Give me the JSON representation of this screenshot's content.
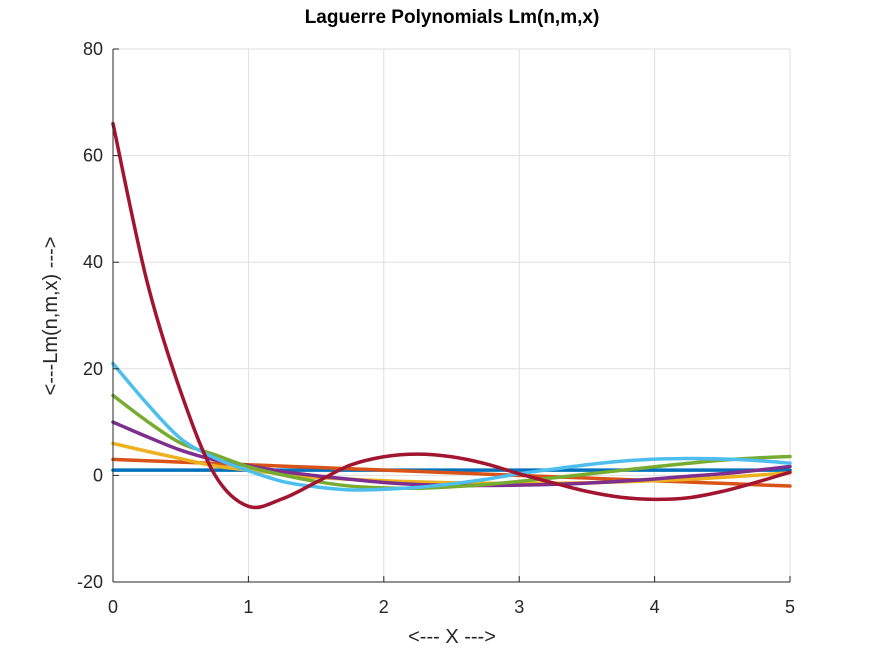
{
  "chart_data": {
    "type": "line",
    "title": "Laguerre Polynomials Lm(n,m,x)",
    "xlabel": "<--- X --->",
    "ylabel": "<---Lm(n,m,x) --->",
    "xlim": [
      0,
      5
    ],
    "ylim": [
      -20,
      80
    ],
    "xticks": [
      0,
      1,
      2,
      3,
      4,
      5
    ],
    "yticks": [
      -20,
      0,
      20,
      40,
      60,
      80
    ],
    "xtick_labels": [
      "0",
      "1",
      "2",
      "3",
      "4",
      "5"
    ],
    "ytick_labels": [
      "-20",
      "0",
      "20",
      "40",
      "60",
      "80"
    ],
    "grid": true,
    "colors": [
      "#0072BD",
      "#D95319",
      "#EDB120",
      "#7E2F8E",
      "#77AC30",
      "#4DBEEE",
      "#A2142F"
    ],
    "x": [
      0,
      0.25,
      0.5,
      0.75,
      1,
      1.25,
      1.5,
      1.75,
      2,
      2.25,
      2.5,
      2.75,
      3,
      3.25,
      3.5,
      3.75,
      4,
      4.25,
      4.5,
      4.75,
      5
    ],
    "series": [
      {
        "values": [
          1,
          1,
          1,
          1,
          1,
          1,
          1,
          1,
          1,
          1,
          1,
          1,
          1,
          1,
          1,
          1,
          1,
          1,
          1,
          1,
          1
        ]
      },
      {
        "values": [
          3,
          2.75,
          2.5,
          2.25,
          2,
          1.75,
          1.5,
          1.25,
          1,
          0.75,
          0.5,
          0.25,
          0,
          -0.25,
          -0.5,
          -0.75,
          -1,
          -1.25,
          -1.5,
          -1.75,
          -2
        ]
      },
      {
        "values": [
          6,
          4.53,
          3.13,
          1.78,
          1.0,
          0.28,
          -0.38,
          -0.72,
          -1.0,
          -1.22,
          -1.38,
          -1.47,
          -1.5,
          -1.47,
          -1.38,
          -1.22,
          -1.0,
          -0.72,
          -0.38,
          0.03,
          0.5
        ]
      },
      {
        "values": [
          10,
          7.27,
          4.73,
          2.92,
          1.83,
          0.73,
          -0.06,
          -0.73,
          -1.33,
          -1.71,
          -1.85,
          -1.9,
          -1.83,
          -1.69,
          -1.45,
          -1.1,
          -0.67,
          -0.15,
          0.31,
          0.95,
          1.67
        ]
      },
      {
        "values": [
          15,
          10.2,
          6.07,
          3.9,
          1.63,
          0.1,
          -1.13,
          -2.0,
          -2.33,
          -2.4,
          -2.14,
          -1.72,
          -1.13,
          -0.47,
          0.23,
          0.93,
          1.63,
          2.27,
          2.86,
          3.27,
          3.54
        ]
      },
      {
        "values": [
          21,
          13.5,
          6.9,
          3.3,
          0.88,
          -1.13,
          -2.15,
          -2.72,
          -2.6,
          -2.25,
          -1.6,
          -0.75,
          0.3,
          1.17,
          2.0,
          2.65,
          3.05,
          3.18,
          3.08,
          2.8,
          2.3
        ]
      },
      {
        "values": [
          66,
          36.5,
          15.7,
          0.2,
          -5.8,
          -4.4,
          -1.3,
          1.9,
          3.5,
          4.0,
          3.5,
          2.2,
          0.3,
          -1.4,
          -3.0,
          -4.1,
          -4.5,
          -4.2,
          -3.0,
          -1.3,
          0.6
        ]
      }
    ]
  }
}
